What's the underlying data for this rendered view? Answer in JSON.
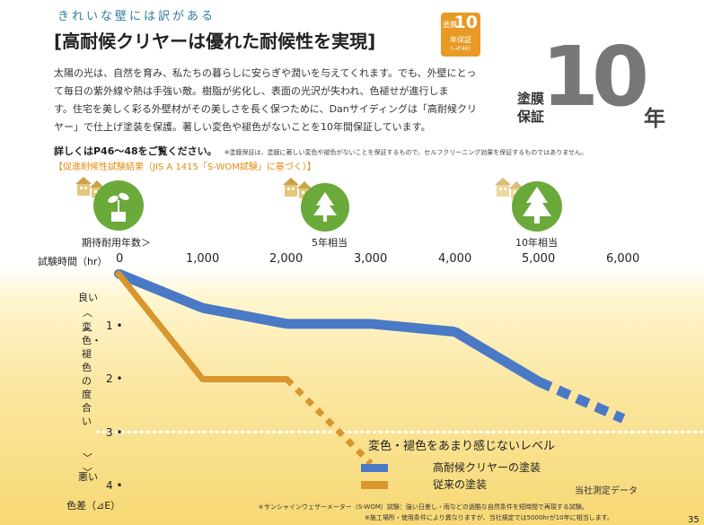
{
  "header": {
    "tagline": "きれいな壁には訳がある",
    "headline": "[高耐候クリヤーは優れた耐候性を実現]",
    "badge": {
      "top": "塗膜",
      "num": "10",
      "mid": "年保証",
      "ref": "(→P.46)"
    }
  },
  "body_lines": [
    "太陽の光は、自然を育み、私たちの暮らしに安らぎや潤いを与えてくれます。でも、外壁にとっ",
    "て毎日の紫外線や熱は手強い敵。樹脂が劣化し、表面の光沢が失われ、色褪せが進行しま",
    "す。住宅を美しく彩る外壁材がその美しさを長く保つために、Danサイディングは「高耐候クリ",
    "ヤー」で仕上げ塗装を保護。著しい変色や褪色がないことを10年間保証しています。"
  ],
  "notes": {
    "detail": "詳しくはP46〜48をご覧ください。",
    "disclaimer": "※塗膜保証は、塗膜に著しい変色や褪色がないことを保証するもので、セルフクリーニング効果を保証するものではありません。"
  },
  "warranty": {
    "label_line1": "塗膜",
    "label_line2": "保証",
    "number": "10",
    "unit": "年"
  },
  "test_title": "【促進耐候性試験結果（JIS A 1415「S-WOM試験」に基づく）】",
  "stages": [
    "期待耐用年数＞",
    "5年相当",
    "10年相当"
  ],
  "chart_data": {
    "type": "line",
    "title": "促進耐候性試験結果",
    "xlabel": "試験時間（hr）",
    "ylabel": "変色・褪色の度合い",
    "x_ticks": [
      "0",
      "1,000",
      "2,000",
      "3,000",
      "4,000",
      "5,000",
      "6,000"
    ],
    "y_ticks": [
      "1",
      "2",
      "3",
      "4"
    ],
    "xlim": [
      0,
      6000
    ],
    "ylim": [
      0,
      4
    ],
    "y_top_label": "良い",
    "y_bottom_label": "悪い",
    "unit_label": "色差（⊿E）",
    "threshold": {
      "value": 3,
      "label": "変色・褪色をあまり感じないレベル"
    },
    "series": [
      {
        "name": "高耐候クリヤーの塗装",
        "color": "#4a79c6",
        "x": [
          0,
          1000,
          2000,
          3000,
          4000,
          5000,
          6000
        ],
        "y": [
          0,
          0.65,
          0.95,
          0.95,
          1.1,
          2.05,
          2.75
        ],
        "dashed_from_x": 5000
      },
      {
        "name": "従来の塗装",
        "color": "#d9962e",
        "x": [
          0,
          1000,
          2000,
          3000
        ],
        "y": [
          0,
          2,
          2,
          3.6
        ],
        "dashed_from_x": 2000
      }
    ]
  },
  "data_note": "当社測定データ",
  "footnotes": [
    "＊サンシャインウェザーメーター（S-WOM）試験：強い日差し・雨などの過酷な自然条件を短時間で再現する試験。",
    "※施工場所・使用条件により異なりますが、当社規定では5000hrが10年に相当します。"
  ],
  "page_number": "35",
  "colors": {
    "accent_orange": "#e48b13",
    "blue_series": "#4a79c6",
    "orange_series": "#d9962e",
    "tree_green": "#6aaa3a"
  },
  "icons": [
    "house-icon",
    "plant-icon",
    "tree-icon"
  ]
}
